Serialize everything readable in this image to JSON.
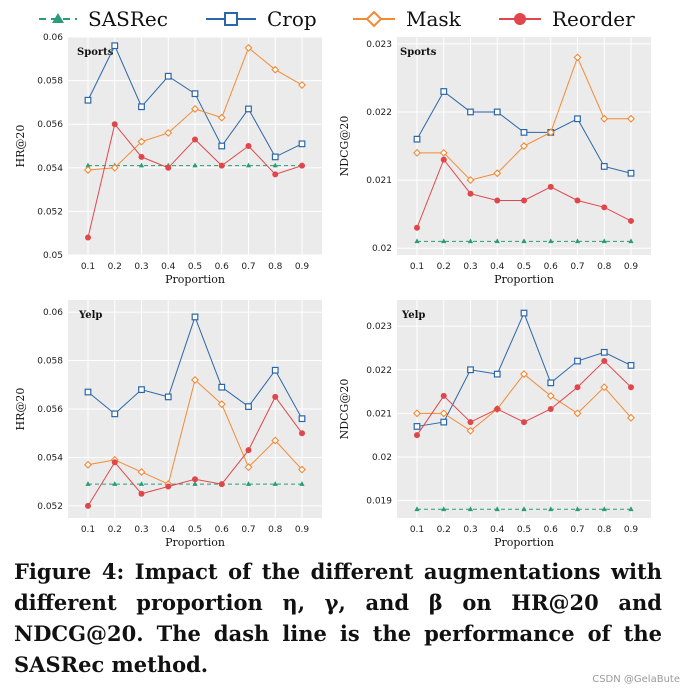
{
  "legend": [
    {
      "name": "SASRec",
      "color": "#2a9d78",
      "style": "dashed",
      "marker": "triangle-icon"
    },
    {
      "name": "Crop",
      "color": "#2b66a8",
      "style": "solid",
      "marker": "square-icon"
    },
    {
      "name": "Mask",
      "color": "#f58a35",
      "style": "solid",
      "marker": "diamond-icon"
    },
    {
      "name": "Reorder",
      "color": "#e0474c",
      "style": "solid",
      "marker": "circle-icon"
    }
  ],
  "caption": "Figure 4: Impact of the different augmentations with different proportion η, γ, and β on HR@20 and NDCG@20. The dash line is the performance of the SASRec method.",
  "watermark": "CSDN @GelaBute",
  "chart_data": [
    {
      "type": "line",
      "title": "Sports",
      "xlabel": "Proportion",
      "ylabel": "HR@20",
      "x": [
        0.1,
        0.2,
        0.3,
        0.4,
        0.5,
        0.6,
        0.7,
        0.8,
        0.9
      ],
      "xticks": [
        "0.1",
        "0.2",
        "0.3",
        "0.4",
        "0.5",
        "0.6",
        "0.7",
        "0.8",
        "0.9"
      ],
      "ylim": [
        0.05,
        0.06
      ],
      "yticks": [
        0.05,
        0.052,
        0.054,
        0.056,
        0.058,
        0.06
      ],
      "yticklabels": [
        "0.05",
        "0.052",
        "0.054",
        "0.056",
        "0.058",
        "0.06"
      ],
      "series": [
        {
          "name": "SASRec",
          "values": [
            0.0541,
            0.0541,
            0.0541,
            0.0541,
            0.0541,
            0.0541,
            0.0541,
            0.0541,
            0.0541
          ]
        },
        {
          "name": "Crop",
          "values": [
            0.0571,
            0.0596,
            0.0568,
            0.0582,
            0.0574,
            0.055,
            0.0567,
            0.0545,
            0.0551
          ]
        },
        {
          "name": "Mask",
          "values": [
            0.0539,
            0.054,
            0.0552,
            0.0556,
            0.0567,
            0.0563,
            0.0595,
            0.0585,
            0.0578
          ]
        },
        {
          "name": "Reorder",
          "values": [
            0.0508,
            0.056,
            0.0545,
            0.054,
            0.0553,
            0.0541,
            0.055,
            0.0537,
            0.0541
          ]
        }
      ]
    },
    {
      "type": "line",
      "title": "Sports",
      "xlabel": "Proportion",
      "ylabel": "NDCG@20",
      "x": [
        0.1,
        0.2,
        0.3,
        0.4,
        0.5,
        0.6,
        0.7,
        0.8,
        0.9
      ],
      "xticks": [
        "0.1",
        "0.2",
        "0.3",
        "0.4",
        "0.5",
        "0.6",
        "0.7",
        "0.8",
        "0.9"
      ],
      "ylim": [
        0.0199,
        0.0231
      ],
      "yticks": [
        0.02,
        0.021,
        0.022,
        0.023
      ],
      "yticklabels": [
        "0.02",
        "0.021",
        "0.022",
        "0.023"
      ],
      "series": [
        {
          "name": "SASRec",
          "values": [
            0.0201,
            0.0201,
            0.0201,
            0.0201,
            0.0201,
            0.0201,
            0.0201,
            0.0201,
            0.0201
          ]
        },
        {
          "name": "Crop",
          "values": [
            0.0216,
            0.0223,
            0.022,
            0.022,
            0.0217,
            0.0217,
            0.0219,
            0.0212,
            0.0211
          ]
        },
        {
          "name": "Mask",
          "values": [
            0.0214,
            0.0214,
            0.021,
            0.0211,
            0.0215,
            0.0217,
            0.0228,
            0.0219,
            0.0219
          ]
        },
        {
          "name": "Reorder",
          "values": [
            0.0203,
            0.0213,
            0.0208,
            0.0207,
            0.0207,
            0.0209,
            0.0207,
            0.0206,
            0.0204
          ]
        }
      ]
    },
    {
      "type": "line",
      "title": "Yelp",
      "xlabel": "Proportion",
      "ylabel": "HR@20",
      "x": [
        0.1,
        0.2,
        0.3,
        0.4,
        0.5,
        0.6,
        0.7,
        0.8,
        0.9
      ],
      "xticks": [
        "0.1",
        "0.2",
        "0.3",
        "0.4",
        "0.5",
        "0.6",
        "0.7",
        "0.8",
        "0.9"
      ],
      "ylim": [
        0.0515,
        0.0605
      ],
      "yticks": [
        0.052,
        0.054,
        0.056,
        0.058,
        0.06
      ],
      "yticklabels": [
        "0.052",
        "0.054",
        "0.056",
        "0.058",
        "0.06"
      ],
      "series": [
        {
          "name": "SASRec",
          "values": [
            0.0529,
            0.0529,
            0.0529,
            0.0529,
            0.0529,
            0.0529,
            0.0529,
            0.0529,
            0.0529
          ]
        },
        {
          "name": "Crop",
          "values": [
            0.0567,
            0.0558,
            0.0568,
            0.0565,
            0.0598,
            0.0569,
            0.0561,
            0.0576,
            0.0556
          ]
        },
        {
          "name": "Mask",
          "values": [
            0.0537,
            0.0539,
            0.0534,
            0.0529,
            0.0572,
            0.0562,
            0.0536,
            0.0547,
            0.0535
          ]
        },
        {
          "name": "Reorder",
          "values": [
            0.052,
            0.0538,
            0.0525,
            0.0528,
            0.0531,
            0.0529,
            0.0543,
            0.0565,
            0.055
          ]
        }
      ]
    },
    {
      "type": "line",
      "title": "Yelp",
      "xlabel": "Proportion",
      "ylabel": "NDCG@20",
      "x": [
        0.1,
        0.2,
        0.3,
        0.4,
        0.5,
        0.6,
        0.7,
        0.8,
        0.9
      ],
      "xticks": [
        "0.1",
        "0.2",
        "0.3",
        "0.4",
        "0.5",
        "0.6",
        "0.7",
        "0.8",
        "0.9"
      ],
      "ylim": [
        0.0186,
        0.0236
      ],
      "yticks": [
        0.019,
        0.02,
        0.021,
        0.022,
        0.023
      ],
      "yticklabels": [
        "0.019",
        "0.02",
        "0.021",
        "0.022",
        "0.023"
      ],
      "series": [
        {
          "name": "SASRec",
          "values": [
            0.0188,
            0.0188,
            0.0188,
            0.0188,
            0.0188,
            0.0188,
            0.0188,
            0.0188,
            0.0188
          ]
        },
        {
          "name": "Crop",
          "values": [
            0.0207,
            0.0208,
            0.022,
            0.0219,
            0.0233,
            0.0217,
            0.0222,
            0.0224,
            0.0221
          ]
        },
        {
          "name": "Mask",
          "values": [
            0.021,
            0.021,
            0.0206,
            0.0211,
            0.0219,
            0.0214,
            0.021,
            0.0216,
            0.0209
          ]
        },
        {
          "name": "Reorder",
          "values": [
            0.0205,
            0.0214,
            0.0208,
            0.0211,
            0.0208,
            0.0211,
            0.0216,
            0.0222,
            0.0216
          ]
        }
      ]
    }
  ]
}
